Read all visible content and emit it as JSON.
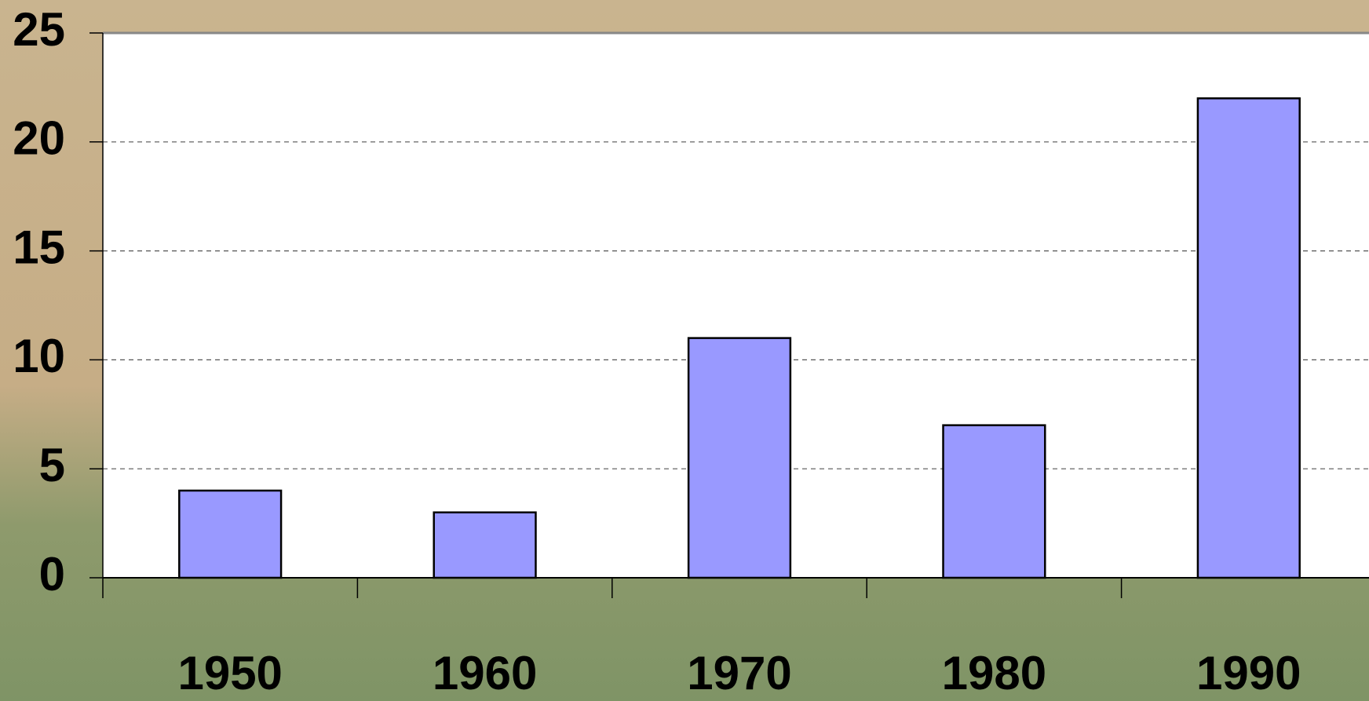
{
  "chart_data": {
    "type": "bar",
    "categories": [
      "1950",
      "1960",
      "1970",
      "1980",
      "1990"
    ],
    "values": [
      4,
      3,
      11,
      7,
      22
    ],
    "color": "#9999ff",
    "ylim": [
      0,
      25
    ],
    "yticks": [
      0,
      5,
      10,
      15,
      20,
      25
    ],
    "grid": true
  }
}
